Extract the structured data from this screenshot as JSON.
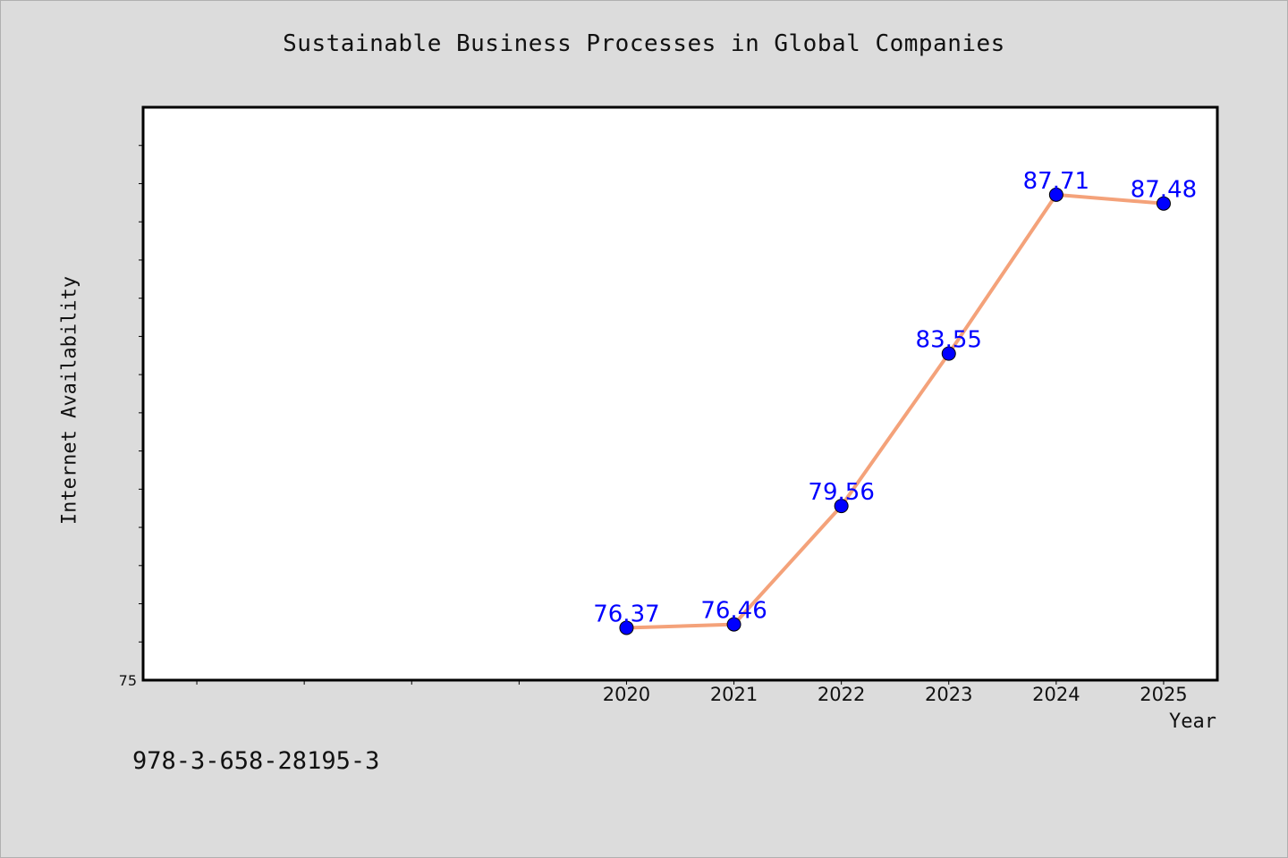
{
  "chart_data": {
    "type": "line",
    "title": "Sustainable Business Processes in Global Companies",
    "xlabel": "Year",
    "ylabel": "Internet Availability",
    "x_tick_positions": [
      2016,
      2017,
      2018,
      2019,
      2020,
      2021,
      2022,
      2023,
      2024,
      2025
    ],
    "categories": [
      "2020",
      "2021",
      "2022",
      "2023",
      "2024",
      "2025"
    ],
    "x": [
      2020,
      2021,
      2022,
      2023,
      2024,
      2025
    ],
    "values": [
      76.37,
      76.46,
      79.56,
      83.55,
      87.71,
      87.48
    ],
    "data_labels": [
      "76.37",
      "76.46",
      "79.56",
      "83.55",
      "87.71",
      "87.48"
    ],
    "xlim": [
      2015.5,
      2025.5
    ],
    "ylim": [
      75,
      90
    ],
    "y_ticks": [
      76,
      77,
      78,
      79,
      80,
      81,
      82,
      83,
      84,
      85,
      86,
      87,
      88,
      89
    ],
    "y_tick_labels": [
      {
        "value": 75,
        "label": "75"
      }
    ],
    "grid": false,
    "legend": "none",
    "line_color": "#f4a27a",
    "marker_color": "#0000ff",
    "label_color": "#0000ff",
    "plot_background": "#ffffff",
    "figure_background": "#dcdcdc"
  },
  "footer": {
    "isbn": "978-3-658-28195-3"
  }
}
